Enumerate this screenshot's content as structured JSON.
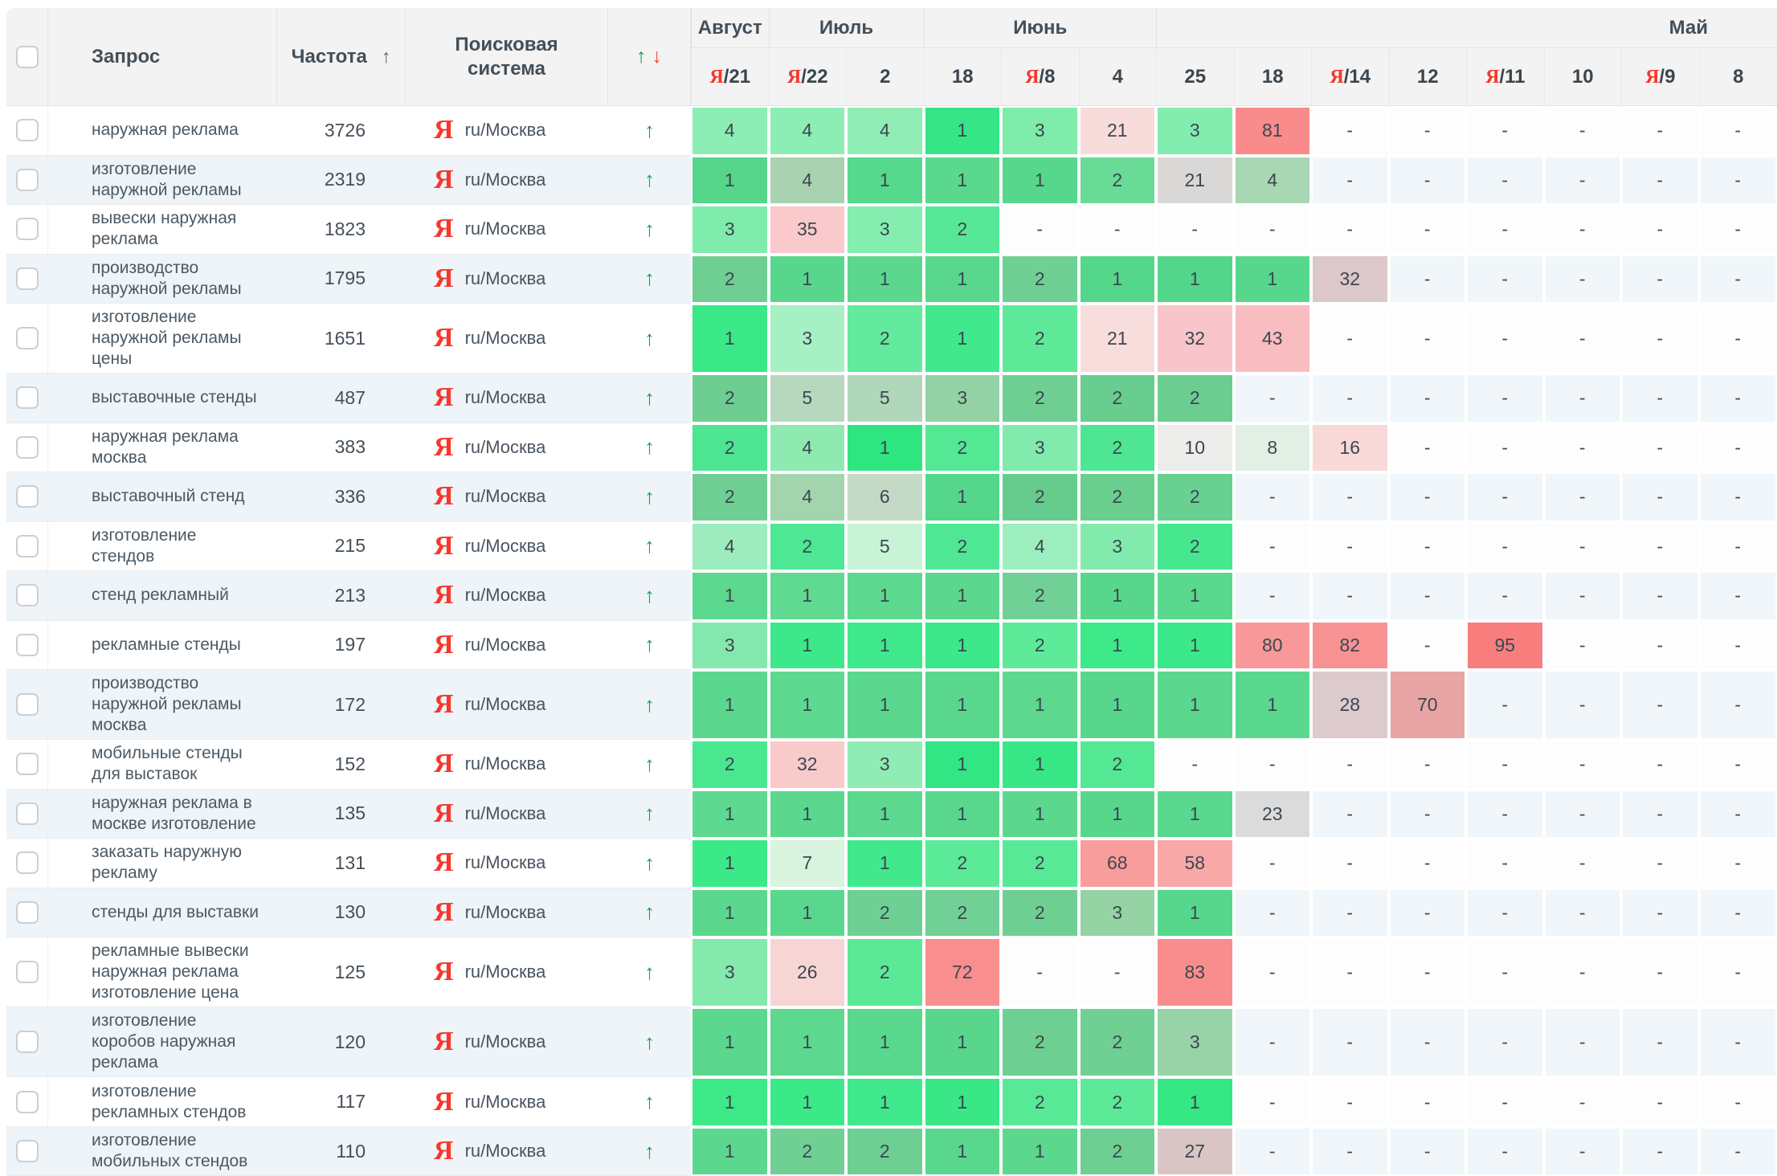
{
  "table": {
    "columns": {
      "query": "Запрос",
      "frequency": "Частота",
      "frequency_sort_icon": "↑",
      "engine": "Поисковая система",
      "dynamics_up_icon": "↑",
      "dynamics_down_icon": "↓"
    },
    "yandex_glyph": "Я",
    "engine_label": "ru/Москва",
    "dynamics_row_icon": "↑",
    "empty_glyph": "-",
    "colors": {
      "accent_green": "#0ba850",
      "accent_red": "#f4433a",
      "yandex_red": "#f5382c",
      "header_bg": "#f2f3f2",
      "row_alt_bg": "#eef4f8"
    },
    "month_groups": [
      {
        "label": "Август",
        "span": 1
      },
      {
        "label": "Июль",
        "span": 2
      },
      {
        "label": "Июнь",
        "span": 3
      },
      {
        "label": "Май",
        "span": 8,
        "align": "right"
      }
    ],
    "date_columns": [
      {
        "ya": true,
        "label": "21"
      },
      {
        "ya": true,
        "label": "22"
      },
      {
        "ya": false,
        "label": "2"
      },
      {
        "ya": false,
        "label": "18"
      },
      {
        "ya": true,
        "label": "8"
      },
      {
        "ya": false,
        "label": "4"
      },
      {
        "ya": false,
        "label": "25"
      },
      {
        "ya": false,
        "label": "18"
      },
      {
        "ya": true,
        "label": "14"
      },
      {
        "ya": false,
        "label": "12"
      },
      {
        "ya": true,
        "label": "11"
      },
      {
        "ya": false,
        "label": "10"
      },
      {
        "ya": true,
        "label": "9"
      },
      {
        "ya": false,
        "label": "8"
      }
    ],
    "rows": [
      {
        "query": "наружная реклама",
        "frequency": "3726",
        "dynamics": "up",
        "cells": [
          {
            "v": "4",
            "c": "#8ceeb4"
          },
          {
            "v": "4",
            "c": "#8ceeb4"
          },
          {
            "v": "4",
            "c": "#90edb6"
          },
          {
            "v": "1",
            "c": "#36e586"
          },
          {
            "v": "3",
            "c": "#7fecab"
          },
          {
            "v": "21",
            "c": "#f8dcdc"
          },
          {
            "v": "3",
            "c": "#82edae"
          },
          {
            "v": "81",
            "c": "#f98b8b"
          },
          null,
          null,
          null,
          null,
          null,
          null
        ]
      },
      {
        "query": "изготовление наружной рекламы",
        "frequency": "2319",
        "dynamics": "up",
        "cells": [
          {
            "v": "1",
            "c": "#55d68b"
          },
          {
            "v": "4",
            "c": "#a9d3b0"
          },
          {
            "v": "1",
            "c": "#56d88d"
          },
          {
            "v": "1",
            "c": "#5ad98e"
          },
          {
            "v": "1",
            "c": "#57d78c"
          },
          {
            "v": "2",
            "c": "#69db97"
          },
          {
            "v": "21",
            "c": "#d9d8d6"
          },
          {
            "v": "4",
            "c": "#a9d6b3"
          },
          null,
          null,
          null,
          null,
          null,
          null
        ]
      },
      {
        "query": "вывески наружная реклама",
        "frequency": "1823",
        "dynamics": "up",
        "cells": [
          {
            "v": "3",
            "c": "#7fecab"
          },
          {
            "v": "35",
            "c": "#f9c9cc"
          },
          {
            "v": "3",
            "c": "#84edaf"
          },
          {
            "v": "2",
            "c": "#56e896"
          },
          null,
          null,
          null,
          null,
          null,
          null,
          null,
          null,
          null,
          null
        ]
      },
      {
        "query": "производство наружной рекламы",
        "frequency": "1795",
        "dynamics": "up",
        "cells": [
          {
            "v": "2",
            "c": "#6fce92"
          },
          {
            "v": "1",
            "c": "#58d78c"
          },
          {
            "v": "1",
            "c": "#5bd88e"
          },
          {
            "v": "1",
            "c": "#59d88d"
          },
          {
            "v": "2",
            "c": "#6fd094"
          },
          {
            "v": "1",
            "c": "#55d78b"
          },
          {
            "v": "1",
            "c": "#52d689"
          },
          {
            "v": "1",
            "c": "#57d78c"
          },
          {
            "v": "32",
            "c": "#dcc7ca"
          },
          null,
          null,
          null,
          null,
          null
        ]
      },
      {
        "query": "изготовление наружной рекламы цены",
        "frequency": "1651",
        "dynamics": "up",
        "cells": [
          {
            "v": "1",
            "c": "#3be888"
          },
          {
            "v": "3",
            "c": "#a7f0c3"
          },
          {
            "v": "2",
            "c": "#63ea9c"
          },
          {
            "v": "1",
            "c": "#41e98c"
          },
          {
            "v": "2",
            "c": "#5ee998"
          },
          {
            "v": "21",
            "c": "#f8dddd"
          },
          {
            "v": "32",
            "c": "#f8c6ca"
          },
          {
            "v": "43",
            "c": "#f9bcc0"
          },
          null,
          null,
          null,
          null,
          null,
          null
        ]
      },
      {
        "query": "выставочные стенды",
        "frequency": "487",
        "dynamics": "up",
        "cells": [
          {
            "v": "2",
            "c": "#6ecd91"
          },
          {
            "v": "5",
            "c": "#b7d8bf"
          },
          {
            "v": "5",
            "c": "#b0d7b9"
          },
          {
            "v": "3",
            "c": "#93d2a4"
          },
          {
            "v": "2",
            "c": "#6fcf93"
          },
          {
            "v": "2",
            "c": "#68cd8e"
          },
          {
            "v": "2",
            "c": "#6bce90"
          },
          null,
          null,
          null,
          null,
          null,
          null,
          null
        ]
      },
      {
        "query": "наружная реклама москва",
        "frequency": "383",
        "dynamics": "up",
        "cells": [
          {
            "v": "2",
            "c": "#4de592"
          },
          {
            "v": "4",
            "c": "#8feab2"
          },
          {
            "v": "1",
            "c": "#2ee580"
          },
          {
            "v": "2",
            "c": "#54e794"
          },
          {
            "v": "3",
            "c": "#81eaad"
          },
          {
            "v": "2",
            "c": "#4fe693"
          },
          {
            "v": "10",
            "c": "#ececea"
          },
          {
            "v": "8",
            "c": "#e2efe4"
          },
          {
            "v": "16",
            "c": "#f9d8d8"
          },
          null,
          null,
          null,
          null,
          null
        ]
      },
      {
        "query": "выставочный стенд",
        "frequency": "336",
        "dynamics": "up",
        "cells": [
          {
            "v": "2",
            "c": "#6fcf93"
          },
          {
            "v": "4",
            "c": "#a3d4ae"
          },
          {
            "v": "6",
            "c": "#c5d9c7"
          },
          {
            "v": "1",
            "c": "#54d78b"
          },
          {
            "v": "2",
            "c": "#66cc8d"
          },
          {
            "v": "2",
            "c": "#6ace8f"
          },
          {
            "v": "2",
            "c": "#68d191"
          },
          null,
          null,
          null,
          null,
          null,
          null,
          null
        ]
      },
      {
        "query": "изготовление стендов",
        "frequency": "215",
        "dynamics": "up",
        "cells": [
          {
            "v": "4",
            "c": "#9cecbd"
          },
          {
            "v": "2",
            "c": "#4ee793"
          },
          {
            "v": "5",
            "c": "#c9f3d7"
          },
          {
            "v": "2",
            "c": "#50e794"
          },
          {
            "v": "4",
            "c": "#9deebf"
          },
          {
            "v": "3",
            "c": "#83eaae"
          },
          {
            "v": "2",
            "c": "#47e78f"
          },
          null,
          null,
          null,
          null,
          null,
          null,
          null
        ]
      },
      {
        "query": "стенд рекламный",
        "frequency": "213",
        "dynamics": "up",
        "cells": [
          {
            "v": "1",
            "c": "#5dd88f"
          },
          {
            "v": "1",
            "c": "#60d991"
          },
          {
            "v": "1",
            "c": "#5ed990"
          },
          {
            "v": "1",
            "c": "#5bd88e"
          },
          {
            "v": "2",
            "c": "#71d095"
          },
          {
            "v": "1",
            "c": "#58d78c"
          },
          {
            "v": "1",
            "c": "#5ad88d"
          },
          null,
          null,
          null,
          null,
          null,
          null,
          null
        ]
      },
      {
        "query": "рекламные стенды",
        "frequency": "197",
        "dynamics": "up",
        "cells": [
          {
            "v": "3",
            "c": "#84e8ae"
          },
          {
            "v": "1",
            "c": "#3de88a"
          },
          {
            "v": "1",
            "c": "#3fe98b"
          },
          {
            "v": "1",
            "c": "#3ce889"
          },
          {
            "v": "2",
            "c": "#5dea99"
          },
          {
            "v": "1",
            "c": "#3ee98a"
          },
          {
            "v": "1",
            "c": "#3ce98a"
          },
          {
            "v": "80",
            "c": "#f89898"
          },
          {
            "v": "82",
            "c": "#f89292"
          },
          null,
          {
            "v": "95",
            "c": "#f87e7e"
          },
          null,
          null,
          null
        ]
      },
      {
        "query": "производство наружной рекламы москва",
        "frequency": "172",
        "dynamics": "up",
        "cells": [
          {
            "v": "1",
            "c": "#5cd88e"
          },
          {
            "v": "1",
            "c": "#5ed990"
          },
          {
            "v": "1",
            "c": "#5bd88e"
          },
          {
            "v": "1",
            "c": "#59d88d"
          },
          {
            "v": "1",
            "c": "#5dd88f"
          },
          {
            "v": "1",
            "c": "#58d78c"
          },
          {
            "v": "1",
            "c": "#5bd88e"
          },
          {
            "v": "1",
            "c": "#5ad88d"
          },
          {
            "v": "28",
            "c": "#dccacd"
          },
          {
            "v": "70",
            "c": "#e8a5a5"
          },
          null,
          null,
          null,
          null
        ]
      },
      {
        "query": "мобильные стенды для выставок",
        "frequency": "152",
        "dynamics": "up",
        "cells": [
          {
            "v": "2",
            "c": "#4ae790"
          },
          {
            "v": "32",
            "c": "#f8caca"
          },
          {
            "v": "3",
            "c": "#8fecb4"
          },
          {
            "v": "1",
            "c": "#32e683"
          },
          {
            "v": "1",
            "c": "#37e785"
          },
          {
            "v": "2",
            "c": "#54e895"
          },
          null,
          null,
          null,
          null,
          null,
          null,
          null,
          null
        ]
      },
      {
        "query": "наружная реклама в москве изготовление",
        "frequency": "135",
        "dynamics": "up",
        "cells": [
          {
            "v": "1",
            "c": "#5ed990"
          },
          {
            "v": "1",
            "c": "#5bd88e"
          },
          {
            "v": "1",
            "c": "#5dd88f"
          },
          {
            "v": "1",
            "c": "#59d88d"
          },
          {
            "v": "1",
            "c": "#5cd88e"
          },
          {
            "v": "1",
            "c": "#58d78c"
          },
          {
            "v": "1",
            "c": "#5ad88d"
          },
          {
            "v": "23",
            "c": "#dbdbdb"
          },
          null,
          null,
          null,
          null,
          null,
          null
        ]
      },
      {
        "query": "заказать наружную рекламу",
        "frequency": "131",
        "dynamics": "up",
        "cells": [
          {
            "v": "1",
            "c": "#3ce988"
          },
          {
            "v": "7",
            "c": "#d8f3de"
          },
          {
            "v": "1",
            "c": "#41e98c"
          },
          {
            "v": "2",
            "c": "#5bea97"
          },
          {
            "v": "2",
            "c": "#58e996"
          },
          {
            "v": "68",
            "c": "#f99c9c"
          },
          {
            "v": "58",
            "c": "#f9a8a8"
          },
          null,
          null,
          null,
          null,
          null,
          null,
          null
        ]
      },
      {
        "query": "стенды для выставки",
        "frequency": "130",
        "dynamics": "up",
        "cells": [
          {
            "v": "1",
            "c": "#5cd88e"
          },
          {
            "v": "1",
            "c": "#59d88d"
          },
          {
            "v": "2",
            "c": "#6ed094"
          },
          {
            "v": "2",
            "c": "#71d095"
          },
          {
            "v": "2",
            "c": "#6fcf93"
          },
          {
            "v": "3",
            "c": "#95d3a5"
          },
          {
            "v": "1",
            "c": "#57d78c"
          },
          null,
          null,
          null,
          null,
          null,
          null,
          null
        ]
      },
      {
        "query": "рекламные вывески наружная реклама изготовление цена",
        "frequency": "125",
        "dynamics": "up",
        "tall": true,
        "cells": [
          {
            "v": "3",
            "c": "#85e9ae"
          },
          {
            "v": "26",
            "c": "#f8d5d5"
          },
          {
            "v": "2",
            "c": "#5ce997"
          },
          {
            "v": "72",
            "c": "#f98e8e"
          },
          null,
          null,
          {
            "v": "83",
            "c": "#f98d8d"
          },
          null,
          null,
          null,
          null,
          null,
          null,
          null
        ]
      },
      {
        "query": "изготовление коробов наружная реклама",
        "frequency": "120",
        "dynamics": "up",
        "cells": [
          {
            "v": "1",
            "c": "#5bd88e"
          },
          {
            "v": "1",
            "c": "#5dd88f"
          },
          {
            "v": "1",
            "c": "#5ad88d"
          },
          {
            "v": "1",
            "c": "#58d78c"
          },
          {
            "v": "2",
            "c": "#6dcf92"
          },
          {
            "v": "2",
            "c": "#70d094"
          },
          {
            "v": "3",
            "c": "#97d3a7"
          },
          null,
          null,
          null,
          null,
          null,
          null,
          null
        ]
      },
      {
        "query": "изготовление рекламных стендов",
        "frequency": "117",
        "dynamics": "up",
        "cells": [
          {
            "v": "1",
            "c": "#3ee98a"
          },
          {
            "v": "1",
            "c": "#3ce989"
          },
          {
            "v": "1",
            "c": "#40e98b"
          },
          {
            "v": "1",
            "c": "#39e787"
          },
          {
            "v": "2",
            "c": "#58e996"
          },
          {
            "v": "2",
            "c": "#5cea98"
          },
          {
            "v": "1",
            "c": "#36e785"
          },
          null,
          null,
          null,
          null,
          null,
          null,
          null
        ]
      },
      {
        "query": "изготовление мобильных стендов",
        "frequency": "110",
        "dynamics": "up",
        "cells": [
          {
            "v": "1",
            "c": "#5cd88e"
          },
          {
            "v": "2",
            "c": "#70d094"
          },
          {
            "v": "2",
            "c": "#6ecf93"
          },
          {
            "v": "1",
            "c": "#59d88d"
          },
          {
            "v": "1",
            "c": "#5bd88e"
          },
          {
            "v": "2",
            "c": "#6dcf92"
          },
          {
            "v": "27",
            "c": "#d9c6c4"
          },
          null,
          null,
          null,
          null,
          null,
          null,
          null
        ]
      }
    ]
  }
}
